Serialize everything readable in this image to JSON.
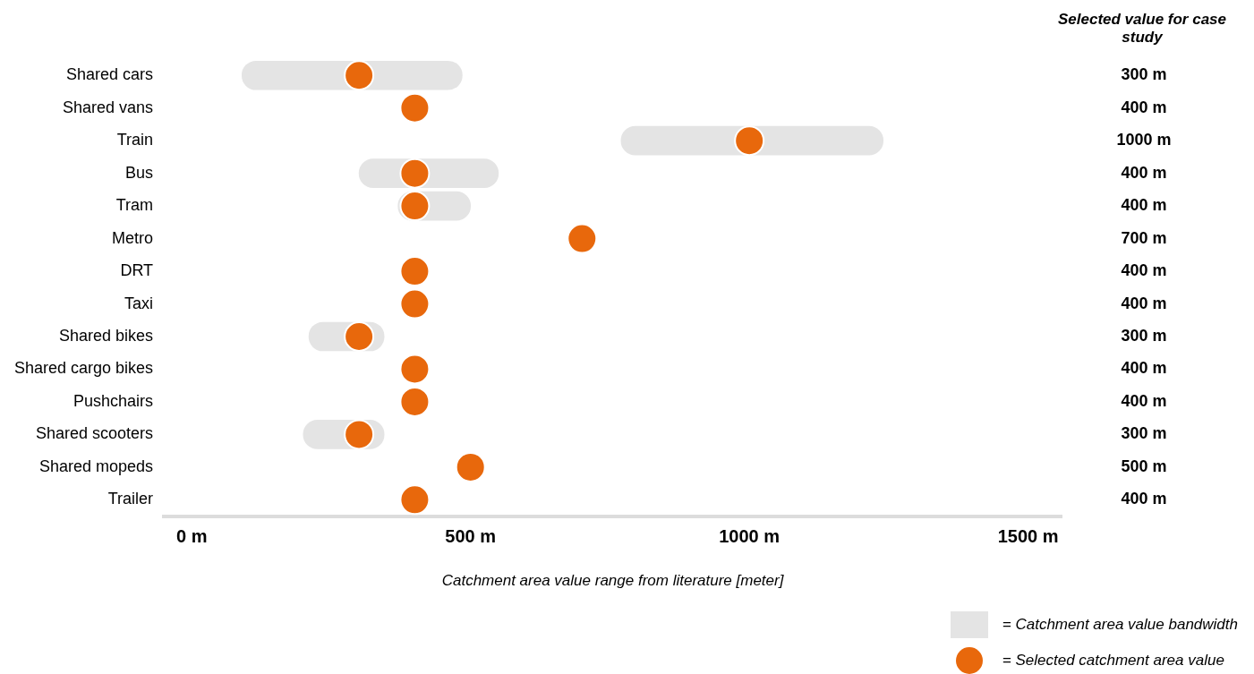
{
  "chart_data": {
    "type": "bar",
    "orientation": "horizontal",
    "xlabel": "Catchment area value range from literature [meter]",
    "categories": [
      "Shared cars",
      "Shared vans",
      "Train",
      "Bus",
      "Tram",
      "Metro",
      "DRT",
      "Taxi",
      "Shared bikes",
      "Shared cargo bikes",
      "Pushchairs",
      "Shared scooters",
      "Shared mopeds",
      "Trailer"
    ],
    "xlim": [
      -50,
      1560
    ],
    "xticks": [
      {
        "value": 0,
        "label": "0 m"
      },
      {
        "value": 500,
        "label": "500 m"
      },
      {
        "value": 1000,
        "label": "1000 m"
      },
      {
        "value": 1500,
        "label": "1500 m"
      }
    ],
    "series": [
      {
        "name": "= Catchment area value bandwidth",
        "color": "#e4e4e4",
        "base": [
          90,
          null,
          770,
          300,
          370,
          null,
          null,
          null,
          210,
          null,
          null,
          200,
          null,
          null
        ],
        "values": [
          395,
          null,
          470,
          250,
          130,
          null,
          null,
          null,
          135,
          null,
          null,
          145,
          null,
          null
        ]
      },
      {
        "name": "= Selected catchment area value",
        "type": "scatter",
        "color": "#e8680c",
        "values": [
          300,
          400,
          1000,
          400,
          400,
          700,
          400,
          400,
          300,
          400,
          400,
          300,
          500,
          400
        ],
        "value_labels": [
          "300 m",
          "400 m",
          "1000 m",
          "400 m",
          "400 m",
          "700 m",
          "400 m",
          "400 m",
          "300 m",
          "400 m",
          "400 m",
          "300 m",
          "500 m",
          "400 m"
        ]
      }
    ],
    "annotations": [
      "Selected value for case study"
    ],
    "grid": false,
    "legend": "bottom right"
  }
}
